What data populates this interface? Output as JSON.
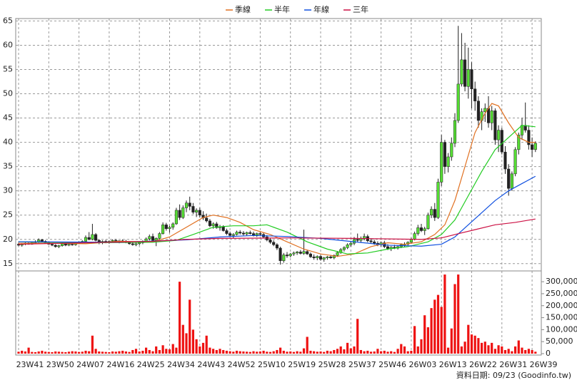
{
  "chart_data": {
    "type": "candlestick",
    "note": "資料日期: 09/23 (Goodinfo.tw)",
    "grid": true,
    "up_color": "#55dd33",
    "down_color": "#222222",
    "volume_color": "#ee1111",
    "categories": [
      "23W41",
      null,
      null,
      null,
      null,
      null,
      null,
      null,
      null,
      "23W50",
      null,
      null,
      null,
      null,
      null,
      null,
      null,
      null,
      "24W07",
      null,
      null,
      null,
      null,
      null,
      null,
      null,
      null,
      "24W16",
      null,
      null,
      null,
      null,
      null,
      null,
      null,
      null,
      "24W25",
      null,
      null,
      null,
      null,
      null,
      null,
      null,
      null,
      "24W34",
      null,
      null,
      null,
      null,
      null,
      null,
      null,
      null,
      "24W43",
      null,
      null,
      null,
      null,
      null,
      null,
      null,
      null,
      "24W52",
      null,
      null,
      null,
      null,
      null,
      null,
      null,
      null,
      "25W10",
      null,
      null,
      null,
      null,
      null,
      null,
      null,
      null,
      "25W19",
      null,
      null,
      null,
      null,
      null,
      null,
      null,
      null,
      "25W28",
      null,
      null,
      null,
      null,
      null,
      null,
      null,
      null,
      "25W37",
      null,
      null,
      null,
      null,
      null,
      null,
      null,
      null,
      "25W46",
      null,
      null,
      null,
      null,
      null,
      null,
      null,
      null,
      "26W03",
      null,
      null,
      null,
      null,
      null,
      null,
      null,
      null,
      "26W13",
      null,
      null,
      null,
      null,
      null,
      null,
      null,
      null,
      "26W22",
      null,
      null,
      null,
      null,
      null,
      null,
      null,
      null,
      "26W31",
      null,
      null,
      null,
      null,
      null,
      null,
      null,
      null,
      "26W39",
      null
    ],
    "candles": [
      [
        19,
        19.3,
        18.6,
        18.8
      ],
      [
        18.8,
        19.2,
        18.5,
        19
      ],
      [
        19,
        19.5,
        18.8,
        19.2
      ],
      [
        19.2,
        19.4,
        18.9,
        19
      ],
      [
        19,
        19.6,
        18.9,
        19.4
      ],
      [
        19.4,
        19.8,
        19.1,
        19.5
      ],
      [
        19.5,
        20.2,
        19.3,
        19.9
      ],
      [
        19.9,
        20.1,
        19.4,
        19.6
      ],
      [
        19.6,
        19.8,
        19.2,
        19.3
      ],
      [
        19.3,
        19.5,
        18.9,
        19
      ],
      [
        19,
        19.2,
        18.6,
        18.8
      ],
      [
        18.8,
        19,
        18.3,
        18.5
      ],
      [
        18.5,
        18.9,
        18.2,
        18.7
      ],
      [
        18.7,
        19.3,
        18.5,
        19.1
      ],
      [
        19.1,
        19.4,
        18.6,
        18.8
      ],
      [
        18.8,
        19.2,
        18.6,
        19
      ],
      [
        19,
        19.3,
        18.7,
        18.9
      ],
      [
        18.9,
        19.4,
        18.7,
        19.2
      ],
      [
        19.2,
        19.6,
        19,
        19.4
      ],
      [
        19.4,
        19.8,
        19.2,
        19.6
      ],
      [
        19.6,
        20.8,
        19.4,
        20.4
      ],
      [
        20.4,
        21.5,
        19.8,
        20
      ],
      [
        20,
        23.2,
        19.8,
        21
      ],
      [
        21,
        21.3,
        19.6,
        19.8
      ],
      [
        19.8,
        20,
        19,
        19.3
      ],
      [
        19.3,
        19.8,
        19,
        19.6
      ],
      [
        19.6,
        19.9,
        19.2,
        19.4
      ],
      [
        19.4,
        19.8,
        19.1,
        19.6
      ],
      [
        19.6,
        20,
        19.3,
        19.8
      ],
      [
        19.8,
        20.1,
        19.4,
        19.5
      ],
      [
        19.5,
        19.8,
        19.2,
        19.7
      ],
      [
        19.7,
        20,
        19.4,
        19.6
      ],
      [
        19.6,
        19.9,
        19.2,
        19.4
      ],
      [
        19.4,
        19.6,
        18.9,
        19.1
      ],
      [
        19.1,
        19.4,
        18.7,
        18.9
      ],
      [
        18.9,
        19.3,
        18.6,
        19.1
      ],
      [
        19.1,
        19.5,
        18.8,
        19.3
      ],
      [
        19.3,
        19.8,
        19,
        19.6
      ],
      [
        19.6,
        20.4,
        19.4,
        20.1
      ],
      [
        20.1,
        21,
        19.8,
        20.6
      ],
      [
        20.6,
        21.2,
        19.6,
        19.8
      ],
      [
        19.8,
        20.4,
        18.6,
        20.2
      ],
      [
        20.2,
        21.5,
        20,
        21.2
      ],
      [
        21.2,
        23.5,
        21,
        23
      ],
      [
        23,
        23.4,
        21.8,
        22.2
      ],
      [
        22.2,
        22.8,
        21.4,
        22.5
      ],
      [
        22.5,
        23.5,
        22,
        23.2
      ],
      [
        23.2,
        26.5,
        23,
        26
      ],
      [
        26,
        27.2,
        24,
        24.5
      ],
      [
        24.5,
        27,
        24.2,
        26.5
      ],
      [
        26.5,
        28,
        25.6,
        27.5
      ],
      [
        27.5,
        28.8,
        26,
        26.8
      ],
      [
        26.8,
        27.5,
        25.2,
        25.6
      ],
      [
        25.6,
        26.4,
        24.6,
        26
      ],
      [
        26,
        26.5,
        24.5,
        25
      ],
      [
        25,
        25.8,
        24,
        24.4
      ],
      [
        24.4,
        25.3,
        23.5,
        23.8
      ],
      [
        23.8,
        24.2,
        22.5,
        22.8
      ],
      [
        22.8,
        23.5,
        22.2,
        23.2
      ],
      [
        23.2,
        23.6,
        22.2,
        22.4
      ],
      [
        22.4,
        23,
        21.8,
        22.6
      ],
      [
        22.6,
        22.9,
        21.6,
        21.8
      ],
      [
        21.8,
        22.2,
        20.9,
        21.2
      ],
      [
        21.2,
        21.6,
        20.5,
        20.8
      ],
      [
        20.8,
        21.3,
        20.2,
        21
      ],
      [
        21,
        21.8,
        20.8,
        21.5
      ],
      [
        21.5,
        21.9,
        21,
        21.3
      ],
      [
        21.3,
        21.7,
        20.8,
        21.1
      ],
      [
        21.1,
        21.6,
        20.7,
        21.4
      ],
      [
        21.4,
        21.8,
        21,
        21.2
      ],
      [
        21.2,
        21.6,
        20.6,
        20.9
      ],
      [
        20.9,
        21.4,
        20.5,
        21.2
      ],
      [
        21.2,
        21.6,
        20.8,
        21
      ],
      [
        21,
        21.4,
        20.2,
        20.5
      ],
      [
        20.5,
        20.9,
        19.6,
        19.9
      ],
      [
        19.9,
        20.3,
        19.1,
        19.4
      ],
      [
        19.4,
        19.8,
        18.6,
        18.9
      ],
      [
        18.9,
        19.2,
        17.8,
        18.2
      ],
      [
        18.2,
        18.5,
        14.8,
        15.6
      ],
      [
        15.6,
        17.2,
        15.2,
        16.8
      ],
      [
        16.8,
        17.4,
        16.2,
        16.6
      ],
      [
        16.6,
        17.2,
        16.3,
        17
      ],
      [
        17,
        17.5,
        16.6,
        17.2
      ],
      [
        17.2,
        17.6,
        16.8,
        17.4
      ],
      [
        17.4,
        17.8,
        16.9,
        17.1
      ],
      [
        17.1,
        22,
        16.8,
        17.5
      ],
      [
        17.5,
        17.8,
        16.8,
        17
      ],
      [
        17,
        17.3,
        16.2,
        16.4
      ],
      [
        16.4,
        16.9,
        15.8,
        16.2
      ],
      [
        16.2,
        16.7,
        15.7,
        16.5
      ],
      [
        16.5,
        16.8,
        15.6,
        15.9
      ],
      [
        15.9,
        16.4,
        15.4,
        16.2
      ],
      [
        16.2,
        16.6,
        15.8,
        16.4
      ],
      [
        16.4,
        16.8,
        16,
        16.2
      ],
      [
        16.2,
        16.9,
        15.9,
        16.7
      ],
      [
        16.7,
        17.6,
        16.4,
        17.3
      ],
      [
        17.3,
        18.2,
        17,
        17.9
      ],
      [
        17.9,
        18.6,
        17.5,
        18.3
      ],
      [
        18.3,
        19.2,
        18,
        18.9
      ],
      [
        18.9,
        19.6,
        18.5,
        19.2
      ],
      [
        19.2,
        20.5,
        18.8,
        20
      ],
      [
        20,
        21.2,
        19.4,
        19.8
      ],
      [
        19.8,
        20.6,
        19.3,
        20.2
      ],
      [
        20.2,
        21.2,
        19.8,
        20.6
      ],
      [
        20.6,
        21,
        19.4,
        19.7
      ],
      [
        19.7,
        20.2,
        19.2,
        19.5
      ],
      [
        19.5,
        19.9,
        18.9,
        19.2
      ],
      [
        19.2,
        19.6,
        18.6,
        18.9
      ],
      [
        18.9,
        19.5,
        18.5,
        19.3
      ],
      [
        19.3,
        19.7,
        18.2,
        18.5
      ],
      [
        18.5,
        19,
        17.8,
        18.1
      ],
      [
        18.1,
        18.6,
        17.6,
        18.4
      ],
      [
        18.4,
        18.9,
        18,
        18.2
      ],
      [
        18.2,
        18.7,
        17.9,
        18.5
      ],
      [
        18.5,
        19.2,
        18.2,
        18.9
      ],
      [
        18.9,
        19.4,
        18.5,
        19
      ],
      [
        19,
        19.6,
        18.7,
        19.4
      ],
      [
        19.4,
        20.3,
        19.1,
        20
      ],
      [
        20,
        21.6,
        19.8,
        21.2
      ],
      [
        21.2,
        23,
        20.8,
        22.4
      ],
      [
        22.4,
        23.2,
        21.5,
        21.8
      ],
      [
        21.8,
        22.6,
        20.9,
        22.2
      ],
      [
        22.2,
        25.5,
        22,
        25
      ],
      [
        25,
        26.8,
        24.4,
        26.2
      ],
      [
        26.2,
        27.5,
        23.8,
        24.5
      ],
      [
        24.5,
        32.5,
        24.2,
        31.8
      ],
      [
        31.8,
        41.5,
        31,
        40
      ],
      [
        40,
        40.5,
        33.5,
        35
      ],
      [
        35,
        37.8,
        33.8,
        37
      ],
      [
        37,
        41,
        36.2,
        39.8
      ],
      [
        39.8,
        46,
        39,
        44.5
      ],
      [
        44.5,
        64,
        44,
        52
      ],
      [
        52,
        62.5,
        51.5,
        57
      ],
      [
        57,
        60.5,
        50.5,
        51.5
      ],
      [
        51.5,
        59.5,
        49,
        55
      ],
      [
        55,
        56.5,
        47,
        51
      ],
      [
        51,
        52.5,
        46.5,
        48.5
      ],
      [
        48.5,
        49.5,
        43,
        44.5
      ],
      [
        44.5,
        47,
        42.5,
        46.3
      ],
      [
        46.3,
        48,
        44.2,
        47
      ],
      [
        47,
        49.5,
        43,
        44
      ],
      [
        44,
        47.5,
        42.5,
        46.5
      ],
      [
        46.5,
        47,
        39.5,
        40.5
      ],
      [
        40.5,
        43.5,
        38,
        42.5
      ],
      [
        42.5,
        43,
        37.5,
        38
      ],
      [
        38,
        39.2,
        33.5,
        34.5
      ],
      [
        34.5,
        35.5,
        29,
        30.5
      ],
      [
        30.5,
        34,
        30,
        33.5
      ],
      [
        33.5,
        39,
        33,
        38.5
      ],
      [
        38.5,
        42,
        37.5,
        41.5
      ],
      [
        41.5,
        45,
        40.5,
        43.5
      ],
      [
        43.5,
        48.2,
        42,
        42.5
      ],
      [
        42.5,
        43.5,
        38.5,
        39.5
      ],
      [
        39.5,
        41,
        37,
        38.5
      ],
      [
        38.5,
        40.2,
        38,
        39.8
      ]
    ],
    "volume": [
      8000,
      12000,
      9000,
      25000,
      7000,
      6000,
      9000,
      12000,
      8000,
      7000,
      6000,
      9000,
      8000,
      7000,
      6000,
      8000,
      10000,
      9000,
      7000,
      8000,
      12000,
      10000,
      75000,
      20000,
      9000,
      8000,
      7000,
      6000,
      9000,
      8000,
      10000,
      12000,
      9000,
      7000,
      15000,
      20000,
      9000,
      12000,
      25000,
      15000,
      10000,
      30000,
      15000,
      35000,
      20000,
      18000,
      40000,
      25000,
      300000,
      120000,
      85000,
      225000,
      100000,
      60000,
      30000,
      45000,
      75000,
      25000,
      20000,
      15000,
      20000,
      15000,
      12000,
      10000,
      8000,
      12000,
      10000,
      9000,
      8000,
      7000,
      10000,
      8000,
      9000,
      12000,
      8000,
      7000,
      10000,
      15000,
      25000,
      12000,
      8000,
      9000,
      7000,
      10000,
      8000,
      22000,
      70000,
      12000,
      10000,
      8000,
      9000,
      7000,
      12000,
      10000,
      15000,
      20000,
      30000,
      18000,
      45000,
      22000,
      30000,
      145000,
      15000,
      10000,
      12000,
      8000,
      9000,
      20000,
      10000,
      12000,
      8000,
      10000,
      7000,
      20000,
      40000,
      30000,
      10000,
      12000,
      115000,
      30000,
      60000,
      160000,
      110000,
      190000,
      225000,
      245000,
      195000,
      330000,
      25000,
      105000,
      290000,
      330000,
      30000,
      50000,
      120000,
      80000,
      75000,
      65000,
      45000,
      50000,
      35000,
      45000,
      20000,
      35000,
      30000,
      15000,
      20000,
      10000,
      30000,
      55000,
      25000,
      15000,
      20000,
      15000,
      8000
    ],
    "series": [
      {
        "name": "季線",
        "color": "#e07020",
        "x": [
          0,
          10,
          20,
          30,
          40,
          45,
          50,
          55,
          58,
          62,
          66,
          70,
          75,
          80,
          85,
          90,
          95,
          100,
          105,
          110,
          115,
          120,
          124,
          127,
          130,
          133,
          136,
          139,
          141,
          143,
          146,
          149,
          152,
          154
        ],
        "values": [
          19.2,
          19.2,
          19.1,
          19.6,
          19.5,
          20.5,
          22.5,
          24.5,
          25,
          24.5,
          23.5,
          22,
          21,
          19.5,
          18,
          17,
          16.5,
          17,
          18.5,
          19.3,
          19,
          19.5,
          21,
          23,
          28,
          35,
          42,
          46,
          48,
          47.5,
          44,
          41,
          40,
          40
        ]
      },
      {
        "name": "半年",
        "color": "#22cc22",
        "x": [
          0,
          20,
          40,
          47,
          52,
          58,
          64,
          70,
          74,
          80,
          86,
          92,
          98,
          104,
          110,
          116,
          122,
          126,
          130,
          134,
          138,
          142,
          146,
          150,
          154
        ],
        "values": [
          19.5,
          19.3,
          19.4,
          19.8,
          21,
          22.5,
          22.8,
          22.8,
          23,
          21.5,
          19.5,
          18,
          17,
          17.2,
          18,
          18.5,
          19.5,
          21,
          24,
          29,
          34,
          38.5,
          41,
          43.5,
          43.2
        ]
      },
      {
        "name": "年線",
        "color": "#1050e0",
        "x": [
          0,
          30,
          50,
          60,
          70,
          80,
          90,
          100,
          110,
          120,
          126,
          130,
          134,
          138,
          142,
          146,
          150,
          154
        ],
        "values": [
          19.5,
          19.4,
          19.9,
          20.5,
          20.8,
          20.6,
          20.2,
          19.5,
          18.8,
          18.6,
          19,
          20.5,
          23,
          25.5,
          28,
          30,
          31.5,
          33
        ]
      },
      {
        "name": "三年",
        "color": "#cc1144",
        "x": [
          0,
          40,
          50,
          60,
          80,
          100,
          120,
          126,
          130,
          136,
          142,
          148,
          154
        ],
        "values": [
          19,
          19.6,
          20,
          20.2,
          20.3,
          20.2,
          20,
          20.3,
          21,
          22,
          23,
          23.5,
          24.2
        ]
      }
    ],
    "ylim": [
      13.5,
      65.5
    ],
    "yticks": [
      15,
      20,
      25,
      30,
      35,
      40,
      45,
      50,
      55,
      60,
      65
    ],
    "y2lim": [
      0,
      345000
    ],
    "y2ticks": [
      0,
      {
        "value": 50000,
        "label": "50,000"
      },
      {
        "value": 100000,
        "label": "100,000"
      },
      {
        "value": 150000,
        "label": "150,000"
      },
      {
        "value": 200000,
        "label": "200,000"
      },
      {
        "value": 250000,
        "label": "250,000"
      },
      {
        "value": 300000,
        "label": "300,000"
      }
    ]
  }
}
